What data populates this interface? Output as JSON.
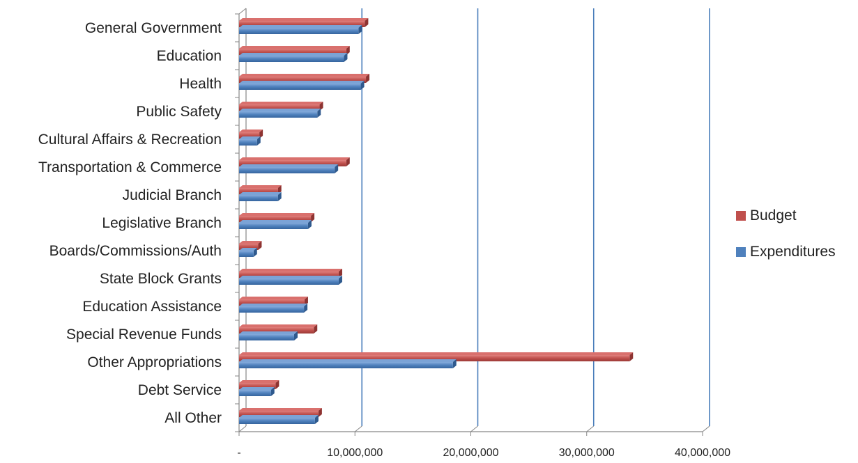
{
  "chart_data": {
    "type": "bar",
    "orientation": "horizontal",
    "categories": [
      "General Government",
      "Education",
      "Health",
      "Public Safety",
      "Cultural Affairs & Recreation",
      "Transportation & Commerce",
      "Judicial Branch",
      "Legislative Branch",
      "Boards/Commissions/Auth",
      "State Block Grants",
      "Education Assistance",
      "Special Revenue Funds",
      "Other Appropriations",
      "Debt Service",
      "All Other"
    ],
    "series": [
      {
        "name": "Budget",
        "color": "#c0504d",
        "values": [
          10850000,
          9250000,
          10950000,
          6950000,
          1750000,
          9250000,
          3350000,
          6200000,
          1650000,
          8600000,
          5650000,
          6450000,
          33700000,
          3150000,
          6850000
        ]
      },
      {
        "name": "Expenditures",
        "color": "#4f81bd",
        "values": [
          10300000,
          9050000,
          10500000,
          6750000,
          1550000,
          8250000,
          3350000,
          5950000,
          1250000,
          8600000,
          5600000,
          4750000,
          18450000,
          2750000,
          6550000
        ]
      }
    ],
    "xlim": [
      0,
      40000000
    ],
    "xticks": [
      "-",
      "10,000,000",
      "20,000,000",
      "30,000,000",
      "40,000,000"
    ],
    "grid": "vertical",
    "legend_position": "right",
    "title": "",
    "xlabel": "",
    "ylabel": ""
  },
  "colors": {
    "gridline": "#4a7ebb",
    "axis": "#868686",
    "text": "#222222"
  }
}
